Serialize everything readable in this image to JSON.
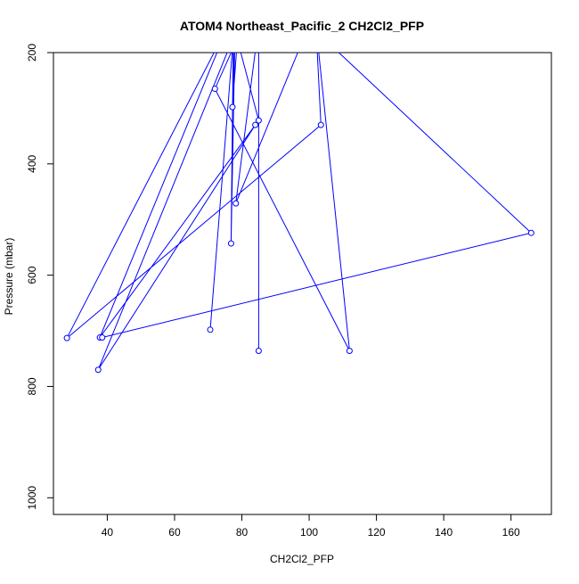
{
  "chart_data": {
    "type": "scatter",
    "title": "ATOM4 Northeast_Pacific_2 CH2Cl2_PFP",
    "xlabel": "CH2Cl2_PFP",
    "ylabel": "Pressure (mbar)",
    "xlim": [
      24,
      172
    ],
    "ylim": [
      1030,
      200
    ],
    "y_reversed": true,
    "grid": false,
    "x_ticks": [
      40,
      60,
      80,
      100,
      120,
      140,
      160
    ],
    "y_ticks": [
      200,
      400,
      600,
      800,
      1000
    ],
    "series_color": "#0000ff",
    "series": [
      {
        "points": [
          {
            "x": 70.6,
            "y": 698
          },
          {
            "x": 77.2,
            "y": 195
          },
          {
            "x": 72.0,
            "y": 265
          },
          {
            "x": 112.0,
            "y": 736
          },
          {
            "x": 102.0,
            "y": 150
          },
          {
            "x": 103.5,
            "y": 330
          },
          {
            "x": 28.0,
            "y": 713
          },
          {
            "x": 76.0,
            "y": 150
          },
          {
            "x": 37.8,
            "y": 712
          },
          {
            "x": 84.0,
            "y": 330
          },
          {
            "x": 37.3,
            "y": 770
          },
          {
            "x": 79.0,
            "y": 150
          },
          {
            "x": 77.2,
            "y": 298
          },
          {
            "x": 78.0,
            "y": 150
          },
          {
            "x": 76.8,
            "y": 543
          },
          {
            "x": 77.5,
            "y": 150
          },
          {
            "x": 85.0,
            "y": 322
          },
          {
            "x": 85.0,
            "y": 150
          },
          {
            "x": 85.0,
            "y": 736
          },
          {
            "x": 85.0,
            "y": 150
          },
          {
            "x": 78.2,
            "y": 471
          },
          {
            "x": 100.0,
            "y": 150
          },
          {
            "x": 166.0,
            "y": 524
          },
          {
            "x": 38.5,
            "y": 712
          }
        ]
      }
    ]
  }
}
